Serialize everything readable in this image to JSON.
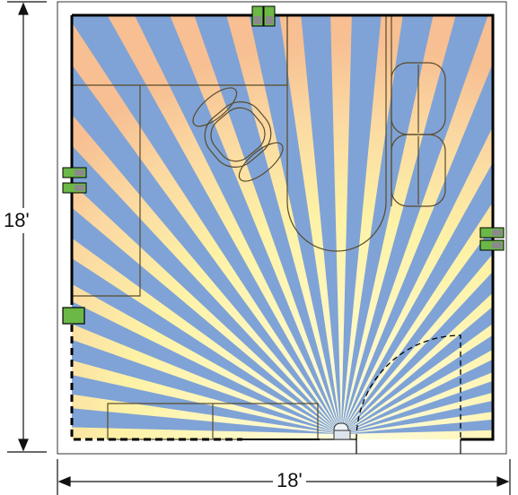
{
  "dimensions": {
    "width_label": "18'",
    "height_label": "18'"
  },
  "colors": {
    "background": "#ffffff",
    "light_warm": "#f9c89c",
    "light_yellow": "#fdf2a6",
    "beam_blue": "#7fa3d6",
    "wall": "#000000",
    "furniture_line": "#5a4a2a",
    "outlet_green": "#6bb847",
    "outlet_grey": "#8a8a8a"
  },
  "scene": {
    "room_width_ft": 18,
    "room_depth_ft": 18,
    "light_fixture": "ceiling-spotlight-icon",
    "outlets": [
      "duplex-outlet-icon",
      "duplex-outlet-icon",
      "duplex-outlet-icon",
      "duplex-outlet-icon",
      "duplex-outlet-icon",
      "duplex-outlet-icon"
    ],
    "switch": "light-switch-icon",
    "furniture": [
      "desk",
      "office-chair",
      "sofa-left",
      "sofa-right",
      "u-shaped-table",
      "low-cabinet"
    ],
    "door": "door-swing"
  }
}
